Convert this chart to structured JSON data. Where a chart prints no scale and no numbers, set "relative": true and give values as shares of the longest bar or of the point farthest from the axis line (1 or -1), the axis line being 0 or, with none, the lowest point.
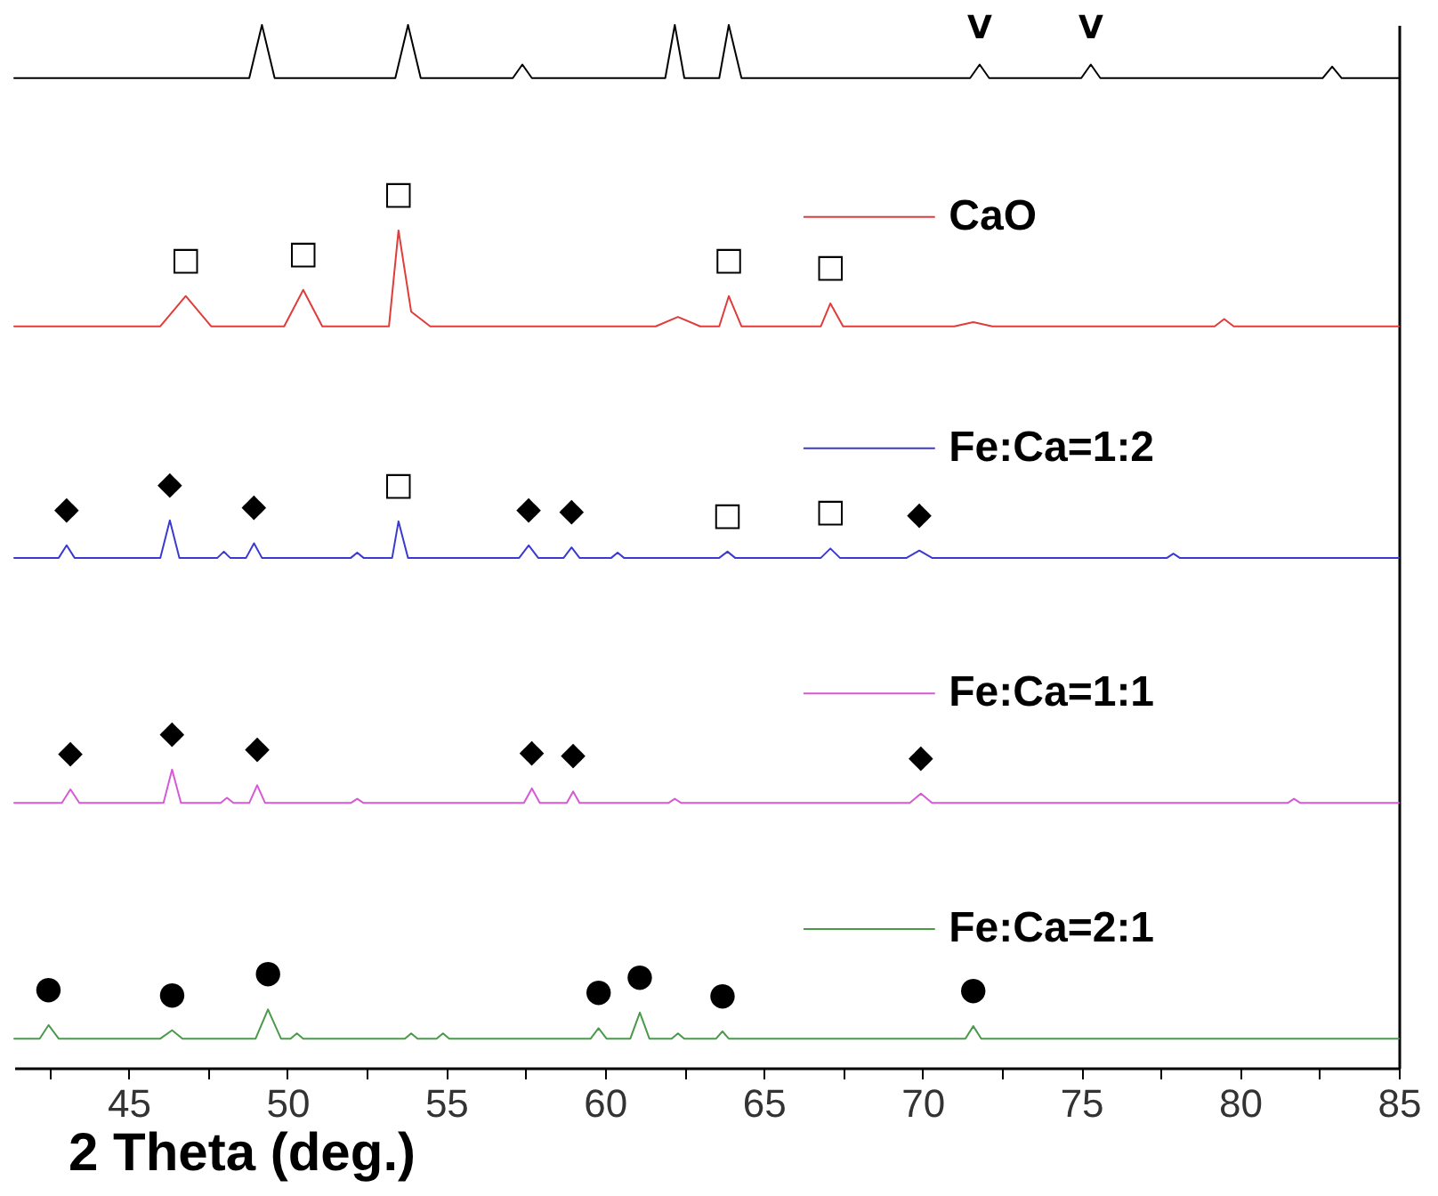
{
  "chart_data": {
    "type": "line",
    "relative": true,
    "xlabel": "2 Theta (deg.)",
    "xlim": [
      41.4,
      85
    ],
    "xticks": [
      {
        "value": 42.5,
        "label": null
      },
      45,
      {
        "value": 47.5,
        "label": null
      },
      50,
      {
        "value": 52.5,
        "label": null
      },
      55,
      {
        "value": 57.5,
        "label": null
      },
      60,
      {
        "value": 62.5,
        "label": null
      },
      65,
      {
        "value": 67.5,
        "label": null
      },
      70,
      {
        "value": 72.5,
        "label": null
      },
      75,
      {
        "value": 77.5,
        "label": null
      },
      80,
      {
        "value": 82.5,
        "label": null
      },
      85
    ],
    "legend": "right",
    "marker": "none",
    "line_style": "solid",
    "series": [
      {
        "color": "#000000",
        "x": [
          41.4,
          48.8,
          49.2,
          49.6,
          53.4,
          53.8,
          54.2,
          57.1,
          57.4,
          57.7,
          61.9,
          62.2,
          62.5,
          63.6,
          63.9,
          64.3,
          71.5,
          71.8,
          72.1,
          75.0,
          75.3,
          75.6,
          82.6,
          82.9,
          83.2,
          85
        ],
        "values": [
          0.949,
          0.949,
          1,
          0.949,
          0.949,
          1,
          0.949,
          0.949,
          0.962,
          0.949,
          0.949,
          1,
          0.949,
          0.949,
          1,
          0.949,
          0.949,
          0.962,
          0.949,
          0.949,
          0.962,
          0.949,
          0.949,
          0.96,
          0.949,
          0.949
        ]
      },
      {
        "name": "CaO",
        "color": "#e03c3c",
        "x": [
          41.4,
          46.0,
          46.8,
          47.6,
          49.9,
          50.5,
          51.1,
          53.2,
          53.5,
          53.9,
          54.5,
          61.6,
          62.3,
          63.0,
          63.6,
          63.9,
          64.3,
          66.8,
          67.1,
          67.5,
          71.0,
          71.6,
          72.2,
          79.2,
          79.5,
          79.8,
          85
        ],
        "values": [
          0.711,
          0.711,
          0.74,
          0.711,
          0.711,
          0.746,
          0.711,
          0.711,
          0.803,
          0.725,
          0.711,
          0.711,
          0.72,
          0.711,
          0.711,
          0.74,
          0.711,
          0.711,
          0.733,
          0.711,
          0.711,
          0.715,
          0.711,
          0.711,
          0.718,
          0.711,
          0.711
        ]
      },
      {
        "name": "Fe:Ca=1:2",
        "color": "#3a3ad0",
        "x": [
          41.4,
          42.8,
          43.05,
          43.3,
          46.0,
          46.3,
          46.6,
          47.8,
          48.0,
          48.2,
          48.7,
          48.95,
          49.2,
          52.0,
          52.2,
          52.4,
          53.3,
          53.5,
          53.8,
          57.3,
          57.6,
          57.9,
          58.7,
          58.95,
          59.2,
          60.2,
          60.4,
          60.6,
          63.6,
          63.86,
          64.1,
          66.8,
          67.1,
          67.4,
          69.5,
          69.9,
          70.3,
          77.7,
          77.9,
          78.1,
          85
        ],
        "values": [
          0.489,
          0.489,
          0.501,
          0.489,
          0.489,
          0.525,
          0.489,
          0.489,
          0.495,
          0.489,
          0.489,
          0.503,
          0.489,
          0.489,
          0.494,
          0.489,
          0.489,
          0.524,
          0.489,
          0.489,
          0.501,
          0.489,
          0.489,
          0.499,
          0.489,
          0.489,
          0.494,
          0.489,
          0.489,
          0.495,
          0.489,
          0.489,
          0.498,
          0.489,
          0.489,
          0.496,
          0.489,
          0.489,
          0.493,
          0.489,
          0.489
        ]
      },
      {
        "name": "Fe:Ca=1:1",
        "color": "#d65ad6",
        "x": [
          41.4,
          42.9,
          43.17,
          43.45,
          46.1,
          46.37,
          46.65,
          47.9,
          48.1,
          48.3,
          48.8,
          49.05,
          49.3,
          52.0,
          52.2,
          52.4,
          57.45,
          57.7,
          57.95,
          58.8,
          59.0,
          59.2,
          62.0,
          62.2,
          62.4,
          69.6,
          69.95,
          70.3,
          81.5,
          81.7,
          81.9,
          85
        ],
        "values": [
          0.254,
          0.254,
          0.267,
          0.254,
          0.254,
          0.286,
          0.254,
          0.254,
          0.259,
          0.254,
          0.254,
          0.271,
          0.254,
          0.254,
          0.258,
          0.254,
          0.254,
          0.268,
          0.254,
          0.254,
          0.265,
          0.254,
          0.254,
          0.258,
          0.254,
          0.254,
          0.263,
          0.254,
          0.254,
          0.258,
          0.254,
          0.254
        ]
      },
      {
        "name": "Fe:Ca=2:1",
        "color": "#4a9a4a",
        "x": [
          41.4,
          42.2,
          42.48,
          42.8,
          46.0,
          46.37,
          46.7,
          49.0,
          49.39,
          49.8,
          50.1,
          50.3,
          50.5,
          53.7,
          53.9,
          54.1,
          54.7,
          54.9,
          55.1,
          59.55,
          59.8,
          60.05,
          60.8,
          61.1,
          61.4,
          62.1,
          62.3,
          62.5,
          63.5,
          63.7,
          63.9,
          71.35,
          71.6,
          71.85,
          85
        ],
        "values": [
          0.028,
          0.028,
          0.041,
          0.028,
          0.028,
          0.036,
          0.028,
          0.028,
          0.056,
          0.028,
          0.028,
          0.033,
          0.028,
          0.028,
          0.033,
          0.028,
          0.028,
          0.033,
          0.028,
          0.028,
          0.038,
          0.028,
          0.028,
          0.053,
          0.028,
          0.028,
          0.033,
          0.028,
          0.028,
          0.035,
          0.028,
          0.028,
          0.04,
          0.028,
          0.028
        ]
      }
    ],
    "annotations": [
      {
        "text": "V",
        "x": 71.8,
        "y": 0.962
      },
      {
        "text": "V",
        "x": 75.3,
        "y": 0.962
      },
      {
        "text": "□",
        "x": 46.8,
        "y": 0.74
      },
      {
        "text": "□",
        "x": 50.5,
        "y": 0.746
      },
      {
        "text": "□",
        "x": 53.5,
        "y": 0.803
      },
      {
        "text": "□",
        "x": 63.9,
        "y": 0.74
      },
      {
        "text": "□",
        "x": 67.1,
        "y": 0.733
      },
      {
        "text": "◆",
        "x": 43.05,
        "y": 0.501
      },
      {
        "text": "◆",
        "x": 46.3,
        "y": 0.525
      },
      {
        "text": "◆",
        "x": 48.95,
        "y": 0.503
      },
      {
        "text": "□",
        "x": 53.5,
        "y": 0.524
      },
      {
        "text": "◆",
        "x": 57.6,
        "y": 0.501
      },
      {
        "text": "◆",
        "x": 58.95,
        "y": 0.499
      },
      {
        "text": "□",
        "x": 63.86,
        "y": 0.495
      },
      {
        "text": "□",
        "x": 67.1,
        "y": 0.498
      },
      {
        "text": "◆",
        "x": 69.9,
        "y": 0.496
      },
      {
        "text": "◆",
        "x": 43.17,
        "y": 0.267
      },
      {
        "text": "◆",
        "x": 46.37,
        "y": 0.286
      },
      {
        "text": "◆",
        "x": 49.05,
        "y": 0.271
      },
      {
        "text": "◆",
        "x": 57.7,
        "y": 0.268
      },
      {
        "text": "◆",
        "x": 59.0,
        "y": 0.265
      },
      {
        "text": "◆",
        "x": 69.95,
        "y": 0.263
      },
      {
        "text": "●",
        "x": 42.48,
        "y": 0.041
      },
      {
        "text": "●",
        "x": 46.37,
        "y": 0.036
      },
      {
        "text": "●",
        "x": 49.39,
        "y": 0.056
      },
      {
        "text": "●",
        "x": 59.8,
        "y": 0.038
      },
      {
        "text": "●",
        "x": 61.1,
        "y": 0.053
      },
      {
        "text": "●",
        "x": 63.7,
        "y": 0.035
      },
      {
        "text": "●",
        "x": 71.6,
        "y": 0.04
      }
    ]
  }
}
